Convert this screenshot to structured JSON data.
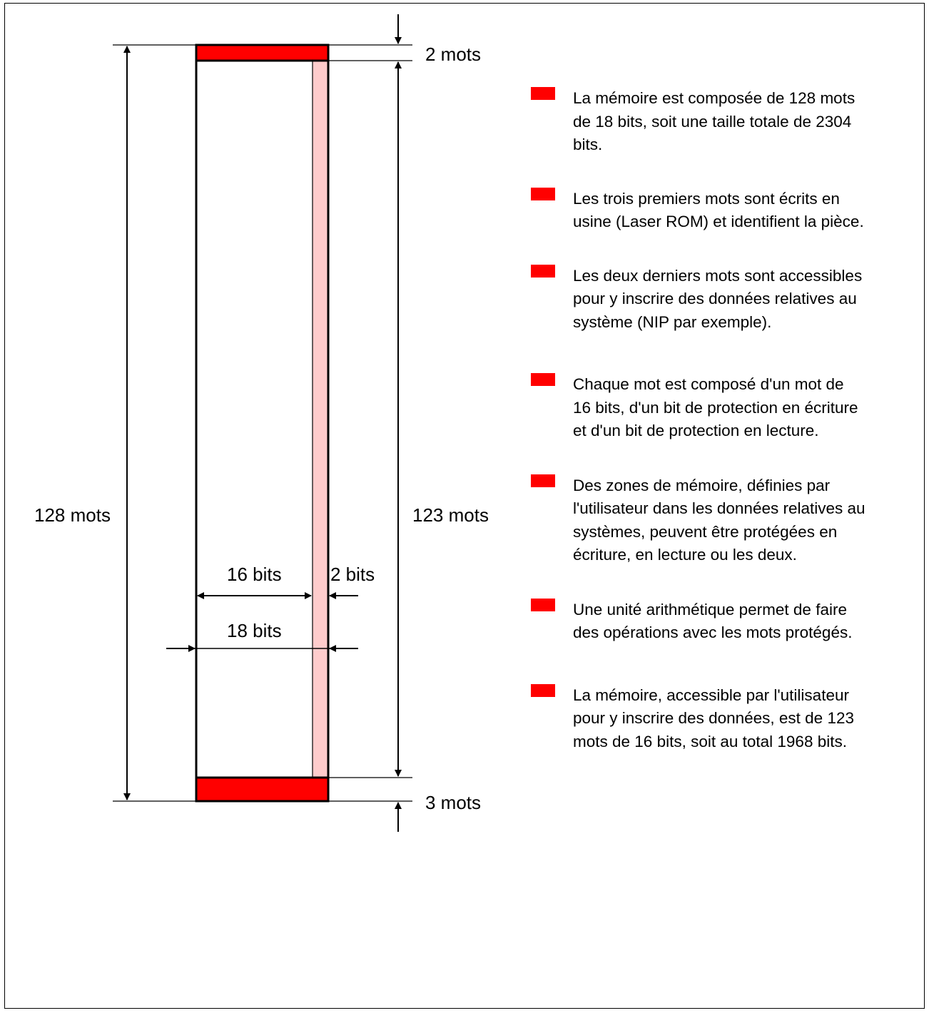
{
  "diagram": {
    "labels": {
      "top_words": "2 mots",
      "total_words": "128 mots",
      "middle_words": "123 mots",
      "bottom_words": "3 mots",
      "data_bits": "16 bits",
      "protection_bits": "2 bits",
      "word_bits": "18 bits"
    },
    "colors": {
      "reserved_block": "#ff0000",
      "protection_column": "#ffcccc",
      "outline": "#000000"
    }
  },
  "notes": [
    {
      "bullet_icon": "red-square-bullet-icon",
      "text": "La mémoire est composée de 128 mots de 18 bits, soit une taille totale de 2304 bits."
    },
    {
      "bullet_icon": "red-square-bullet-icon",
      "text": "Les trois premiers mots sont écrits en usine (Laser ROM) et identifient la pièce."
    },
    {
      "bullet_icon": "red-square-bullet-icon",
      "text": "Les deux derniers mots sont accessibles pour y inscrire des données relatives au système (NIP par exemple)."
    },
    {
      "bullet_icon": "red-square-bullet-icon",
      "text": "Chaque mot est composé d'un mot de 16 bits, d'un bit de protection en écriture et d'un bit de protection en lecture."
    },
    {
      "bullet_icon": "red-square-bullet-icon",
      "text": "Des zones de mémoire, définies par l'utilisateur dans les données relatives au systèmes, peuvent être protégées en écriture, en lecture ou les deux."
    },
    {
      "bullet_icon": "red-square-bullet-icon",
      "text": "Une unité arithmétique permet de faire des opérations avec les mots protégés."
    },
    {
      "bullet_icon": "red-square-bullet-icon",
      "text": "La mémoire, accessible par l'utilisateur pour y inscrire des données, est de 123 mots de 16 bits, soit au total 1968 bits."
    }
  ]
}
